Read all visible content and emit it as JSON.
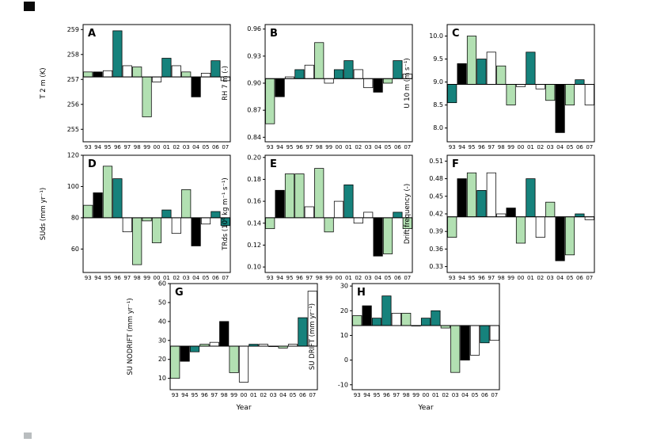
{
  "figure": {
    "background": "#ffffff",
    "x_axis_title": "Year"
  },
  "colors": {
    "g": "#b2e0b2",
    "t": "#16827c",
    "k": "#000000",
    "w": "#ffffff",
    "frame": "#000000"
  },
  "chart_data": [
    {
      "type": "bar",
      "panel_label": "A",
      "ylabel": "T 2 m (K)",
      "xlabel": "",
      "ylim": [
        254.5,
        259.2
      ],
      "ytick_values": [
        255,
        256,
        257,
        258,
        259
      ],
      "ytick_labels": [
        "255",
        "256",
        "257",
        "258",
        "259"
      ],
      "baseline": 257.1,
      "categories": [
        "93",
        "94",
        "95",
        "96",
        "97",
        "98",
        "99",
        "00",
        "01",
        "02",
        "03",
        "04",
        "05",
        "06",
        "07"
      ],
      "values": [
        257.3,
        257.3,
        257.35,
        258.95,
        257.55,
        257.5,
        255.5,
        256.9,
        257.85,
        257.55,
        257.3,
        256.3,
        257.25,
        257.75,
        256.95
      ],
      "bar_colors": [
        "g",
        "k",
        "w",
        "t",
        "w",
        "g",
        "g",
        "w",
        "t",
        "w",
        "g",
        "k",
        "w",
        "t",
        "w"
      ]
    },
    {
      "type": "bar",
      "panel_label": "B",
      "ylabel": "RH 7 m (-)",
      "xlabel": "",
      "ylim": [
        0.835,
        0.965
      ],
      "ytick_values": [
        0.84,
        0.87,
        0.9,
        0.93,
        0.96
      ],
      "ytick_labels": [
        "0.84",
        "0.87",
        "0.90",
        "0.93",
        "0.96"
      ],
      "baseline": 0.905,
      "categories": [
        "93",
        "94",
        "95",
        "96",
        "97",
        "98",
        "99",
        "00",
        "01",
        "02",
        "03",
        "04",
        "05",
        "06",
        "07"
      ],
      "values": [
        0.855,
        0.885,
        0.907,
        0.915,
        0.92,
        0.945,
        0.9,
        0.915,
        0.925,
        0.915,
        0.895,
        0.89,
        0.9,
        0.925,
        0.91
      ],
      "bar_colors": [
        "g",
        "k",
        "w",
        "t",
        "w",
        "g",
        "w",
        "t",
        "t",
        "w",
        "w",
        "k",
        "g",
        "t",
        "w"
      ]
    },
    {
      "type": "bar",
      "panel_label": "C",
      "ylabel": "U 10 m (m s⁻¹)",
      "xlabel": "",
      "ylim": [
        7.7,
        10.25
      ],
      "ytick_values": [
        8.0,
        8.5,
        9.0,
        9.5,
        10.0
      ],
      "ytick_labels": [
        "8.0",
        "8.5",
        "9.0",
        "9.5",
        "10.0"
      ],
      "baseline": 8.95,
      "categories": [
        "93",
        "94",
        "95",
        "96",
        "97",
        "98",
        "99",
        "00",
        "01",
        "02",
        "03",
        "04",
        "05",
        "06",
        "07"
      ],
      "values": [
        8.55,
        9.4,
        10.0,
        9.5,
        9.65,
        9.35,
        8.5,
        8.9,
        9.65,
        8.85,
        8.6,
        7.9,
        8.5,
        9.05,
        8.5
      ],
      "bar_colors": [
        "t",
        "k",
        "g",
        "t",
        "w",
        "g",
        "g",
        "w",
        "t",
        "w",
        "g",
        "k",
        "g",
        "t",
        "w"
      ]
    },
    {
      "type": "bar",
      "panel_label": "D",
      "ylabel": "SUds (mm yr⁻¹)",
      "xlabel": "",
      "ylim": [
        45,
        120
      ],
      "ytick_values": [
        60,
        80,
        100,
        120
      ],
      "ytick_labels": [
        "60",
        "80",
        "100",
        "120"
      ],
      "baseline": 80,
      "categories": [
        "93",
        "94",
        "95",
        "96",
        "97",
        "98",
        "99",
        "00",
        "01",
        "02",
        "03",
        "04",
        "05",
        "06",
        "07"
      ],
      "values": [
        88,
        96,
        113,
        105,
        71,
        50,
        78,
        64,
        85,
        70,
        98,
        62,
        76,
        84,
        75
      ],
      "bar_colors": [
        "g",
        "k",
        "g",
        "t",
        "w",
        "g",
        "g",
        "g",
        "t",
        "w",
        "g",
        "k",
        "w",
        "t",
        "t"
      ]
    },
    {
      "type": "bar",
      "panel_label": "E",
      "ylabel": "TRds (10⁶ kg m⁻¹ s⁻¹)",
      "xlabel": "",
      "ylim": [
        0.095,
        0.202
      ],
      "ytick_values": [
        0.1,
        0.12,
        0.14,
        0.16,
        0.18,
        0.2
      ],
      "ytick_labels": [
        "0.10",
        "0.12",
        "0.14",
        "0.16",
        "0.18",
        "0.20"
      ],
      "baseline": 0.145,
      "categories": [
        "93",
        "94",
        "95",
        "96",
        "97",
        "98",
        "99",
        "00",
        "01",
        "02",
        "03",
        "04",
        "05",
        "06",
        "07"
      ],
      "values": [
        0.135,
        0.17,
        0.185,
        0.185,
        0.155,
        0.19,
        0.132,
        0.16,
        0.175,
        0.14,
        0.15,
        0.11,
        0.112,
        0.15,
        0.135
      ],
      "bar_colors": [
        "g",
        "k",
        "g",
        "g",
        "w",
        "g",
        "g",
        "w",
        "t",
        "w",
        "w",
        "k",
        "g",
        "t",
        "g"
      ]
    },
    {
      "type": "bar",
      "panel_label": "F",
      "ylabel": "Drift frequency (-)",
      "xlabel": "",
      "ylim": [
        0.32,
        0.52
      ],
      "ytick_values": [
        0.33,
        0.36,
        0.39,
        0.42,
        0.45,
        0.48,
        0.51
      ],
      "ytick_labels": [
        "0.33",
        "0.36",
        "0.39",
        "0.42",
        "0.45",
        "0.48",
        "0.51"
      ],
      "baseline": 0.415,
      "categories": [
        "93",
        "94",
        "95",
        "96",
        "97",
        "98",
        "99",
        "00",
        "01",
        "02",
        "03",
        "04",
        "05",
        "06",
        "07"
      ],
      "values": [
        0.38,
        0.48,
        0.49,
        0.46,
        0.49,
        0.42,
        0.43,
        0.37,
        0.48,
        0.38,
        0.44,
        0.34,
        0.35,
        0.42,
        0.41
      ],
      "bar_colors": [
        "g",
        "k",
        "g",
        "t",
        "w",
        "w",
        "k",
        "g",
        "t",
        "w",
        "g",
        "k",
        "g",
        "t",
        "w"
      ]
    },
    {
      "type": "bar",
      "panel_label": "G",
      "ylabel": "SU NODRIFT (mm yr⁻¹)",
      "xlabel": "Year",
      "ylim": [
        4,
        60
      ],
      "ytick_values": [
        10,
        20,
        30,
        40,
        50,
        60
      ],
      "ytick_labels": [
        "10",
        "20",
        "30",
        "40",
        "50",
        "60"
      ],
      "baseline": 27,
      "categories": [
        "93",
        "94",
        "95",
        "96",
        "97",
        "98",
        "99",
        "00",
        "01",
        "02",
        "03",
        "04",
        "05",
        "06",
        "07"
      ],
      "values": [
        10,
        19,
        24,
        28,
        29,
        40,
        13,
        8,
        28,
        28,
        27,
        26,
        28,
        42,
        56
      ],
      "bar_colors": [
        "g",
        "k",
        "t",
        "g",
        "w",
        "k",
        "g",
        "w",
        "t",
        "w",
        "w",
        "g",
        "w",
        "t",
        "w"
      ]
    },
    {
      "type": "bar",
      "panel_label": "H",
      "ylabel": "SU DRIFT (mm yr⁻¹)",
      "xlabel": "Year",
      "ylim": [
        -12,
        31
      ],
      "ytick_values": [
        -10,
        0,
        10,
        20,
        30
      ],
      "ytick_labels": [
        "-10",
        "0",
        "10",
        "20",
        "30"
      ],
      "baseline": 14,
      "categories": [
        "93",
        "94",
        "95",
        "96",
        "97",
        "98",
        "99",
        "00",
        "01",
        "02",
        "03",
        "04",
        "05",
        "06",
        "07"
      ],
      "values": [
        18,
        22,
        17,
        26,
        19,
        19,
        14,
        17,
        20,
        13,
        -5,
        0,
        2,
        7,
        8
      ],
      "bar_colors": [
        "g",
        "k",
        "t",
        "t",
        "w",
        "g",
        "w",
        "t",
        "t",
        "g",
        "g",
        "k",
        "w",
        "t",
        "w"
      ]
    }
  ]
}
